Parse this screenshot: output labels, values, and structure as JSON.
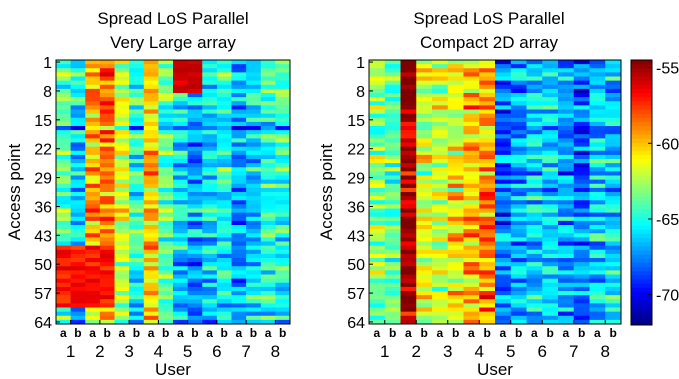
{
  "chart_data": [
    {
      "type": "heatmap",
      "title_lines": [
        "Spread LoS Parallel",
        "Very Large array"
      ],
      "xlabel": "User",
      "ylabel": "Access point",
      "y_ticks": [
        "1",
        "8",
        "15",
        "22",
        "29",
        "36",
        "43",
        "50",
        "57",
        "64"
      ],
      "user_ticks": [
        "1",
        "2",
        "3",
        "4",
        "5",
        "6",
        "7",
        "8"
      ],
      "subcolumn_labels": [
        "a",
        "b"
      ],
      "rows": 64,
      "columns": 16,
      "column_profile": [
        -64,
        -66,
        -60,
        -59,
        -62,
        -65,
        -60,
        -64,
        -66,
        -67,
        -66,
        -65,
        -67,
        -66,
        -65,
        -65
      ],
      "top_block": {
        "rows_1_to_8_columns": [
          9,
          10
        ],
        "value": -56
      },
      "bottom_block": {
        "rows_46_to_60_columns": [
          1,
          2,
          3,
          4
        ],
        "value": -57
      }
    },
    {
      "type": "heatmap",
      "title_lines": [
        "Spread LoS Parallel",
        "Compact 2D array"
      ],
      "xlabel": "User",
      "ylabel": "Access point",
      "y_ticks": [
        "1",
        "8",
        "15",
        "22",
        "29",
        "36",
        "43",
        "50",
        "57",
        "64"
      ],
      "user_ticks": [
        "1",
        "2",
        "3",
        "4",
        "5",
        "6",
        "7",
        "8"
      ],
      "subcolumn_labels": [
        "a",
        "b"
      ],
      "rows": 64,
      "columns": 16,
      "column_profile": [
        -63,
        -64,
        -55,
        -62,
        -62,
        -61,
        -60,
        -59,
        -68,
        -67,
        -66,
        -66,
        -67,
        -68,
        -66,
        -66
      ]
    }
  ],
  "colorbar": {
    "min": -72,
    "max": -54.5,
    "ticks": [
      "-55",
      "-60",
      "-65",
      "-70"
    ],
    "colormap": "jet"
  }
}
